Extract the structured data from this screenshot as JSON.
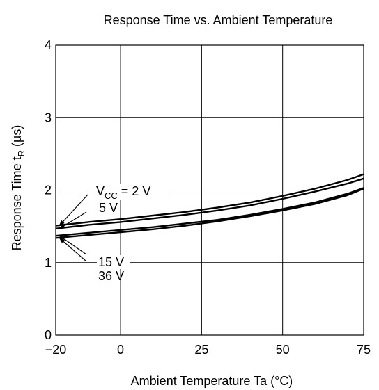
{
  "chart_data": {
    "type": "line",
    "title": "Response Time vs. Ambient Temperature",
    "xlabel": "Ambient Temperature  Ta  (°C)",
    "ylabel": {
      "main": "Response Time  t",
      "sub": "R",
      "unit": "  (µs)"
    },
    "xlim": [
      -20,
      75
    ],
    "ylim": [
      0,
      4
    ],
    "x_ticks": [
      -20,
      0,
      25,
      50,
      75
    ],
    "x_tick_labels": [
      "−20",
      "0",
      "25",
      "50",
      "75"
    ],
    "y_ticks": [
      0,
      1,
      2,
      3,
      4
    ],
    "y_tick_labels": [
      "0",
      "1",
      "2",
      "3",
      "4"
    ],
    "grid": true,
    "x": [
      -20,
      -10,
      0,
      10,
      20,
      30,
      40,
      50,
      60,
      70,
      75
    ],
    "series": [
      {
        "name": "VCC = 2 V",
        "label_main": "V",
        "label_sub": "CC",
        "label_rest": " = 2 V",
        "values": [
          1.51,
          1.56,
          1.6,
          1.65,
          1.7,
          1.76,
          1.83,
          1.92,
          2.02,
          2.14,
          2.22
        ]
      },
      {
        "name": "5 V",
        "values": [
          1.47,
          1.52,
          1.56,
          1.61,
          1.66,
          1.72,
          1.79,
          1.88,
          1.98,
          2.09,
          2.16
        ]
      },
      {
        "name": "15 V",
        "values": [
          1.37,
          1.41,
          1.45,
          1.49,
          1.54,
          1.59,
          1.66,
          1.74,
          1.83,
          1.95,
          2.03
        ]
      },
      {
        "name": "36 V",
        "values": [
          1.34,
          1.38,
          1.42,
          1.46,
          1.51,
          1.57,
          1.64,
          1.72,
          1.81,
          1.93,
          2.02
        ]
      }
    ]
  }
}
